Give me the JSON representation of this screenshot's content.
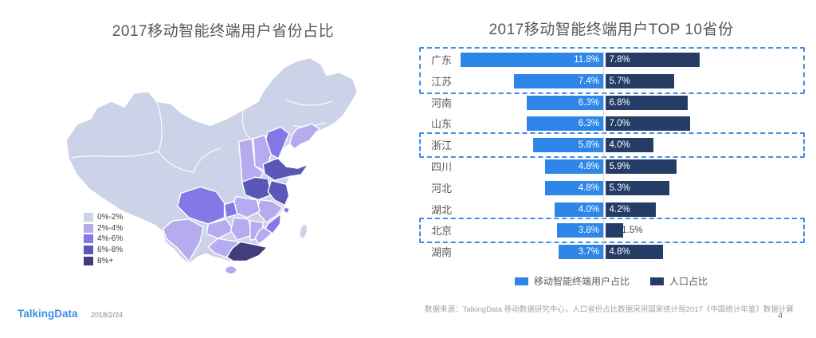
{
  "footer": {
    "logo": "TalkingData",
    "date": "2018/2/24",
    "source_note": "数据来源：TalkingData 移动数据研究中心，人口省份占比数据采用国家统计局2017《中国统计年鉴》数据计算",
    "page_number": "4"
  },
  "chart_data": [
    {
      "type": "heatmap",
      "subtype": "china-choropleth",
      "title": "2017移动智能终端用户省份占比",
      "legend_bands": [
        {
          "label": "0%-2%",
          "color": "#ccd2e8"
        },
        {
          "label": "2%-4%",
          "color": "#b6abee"
        },
        {
          "label": "4%-6%",
          "color": "#8477e6"
        },
        {
          "label": "6%-8%",
          "color": "#5b57b8"
        },
        {
          "label": "8%+",
          "color": "#413e7e"
        }
      ],
      "legend_position": "bottom-left",
      "regions": {
        "china-base": 0,
        "liaoning": 1,
        "hebei": 2,
        "shanxi": 1,
        "shaanxi": 1,
        "shandong": 3,
        "henan": 3,
        "jiangsu": 3,
        "anhui": 1,
        "shanghai": 2,
        "zhejiang": 2,
        "hubei": 1,
        "chongqing": 2,
        "sichuan": 2,
        "guizhou": 1,
        "hunan": 1,
        "jiangxi": 1,
        "fujian": 1,
        "yunnan": 1,
        "guangxi": 1,
        "guangdong": 4,
        "hainan": 1,
        "taiwan": 0
      }
    },
    {
      "type": "bar",
      "orientation": "horizontal-diverging",
      "title": "2017移动智能终端用户TOP 10省份",
      "categories": [
        "广东",
        "江苏",
        "河南",
        "山东",
        "浙江",
        "四川",
        "河北",
        "湖北",
        "北京",
        "湖南"
      ],
      "series": [
        {
          "name": "移动智能终端用户占比",
          "color": "#2e87e8",
          "values": [
            11.8,
            7.4,
            6.3,
            6.3,
            5.8,
            4.8,
            4.8,
            4.0,
            3.8,
            3.7
          ]
        },
        {
          "name": "人口占比",
          "color": "#243c66",
          "values": [
            7.8,
            5.7,
            6.8,
            7.0,
            4.0,
            5.9,
            5.3,
            4.2,
            1.5,
            4.8
          ]
        }
      ],
      "value_suffix": "%",
      "highlighted_rows": [
        [
          0,
          1
        ],
        [
          4,
          4
        ],
        [
          8,
          8
        ]
      ],
      "highlight_border_color": "#3e8fe0",
      "legend_position": "bottom"
    }
  ]
}
